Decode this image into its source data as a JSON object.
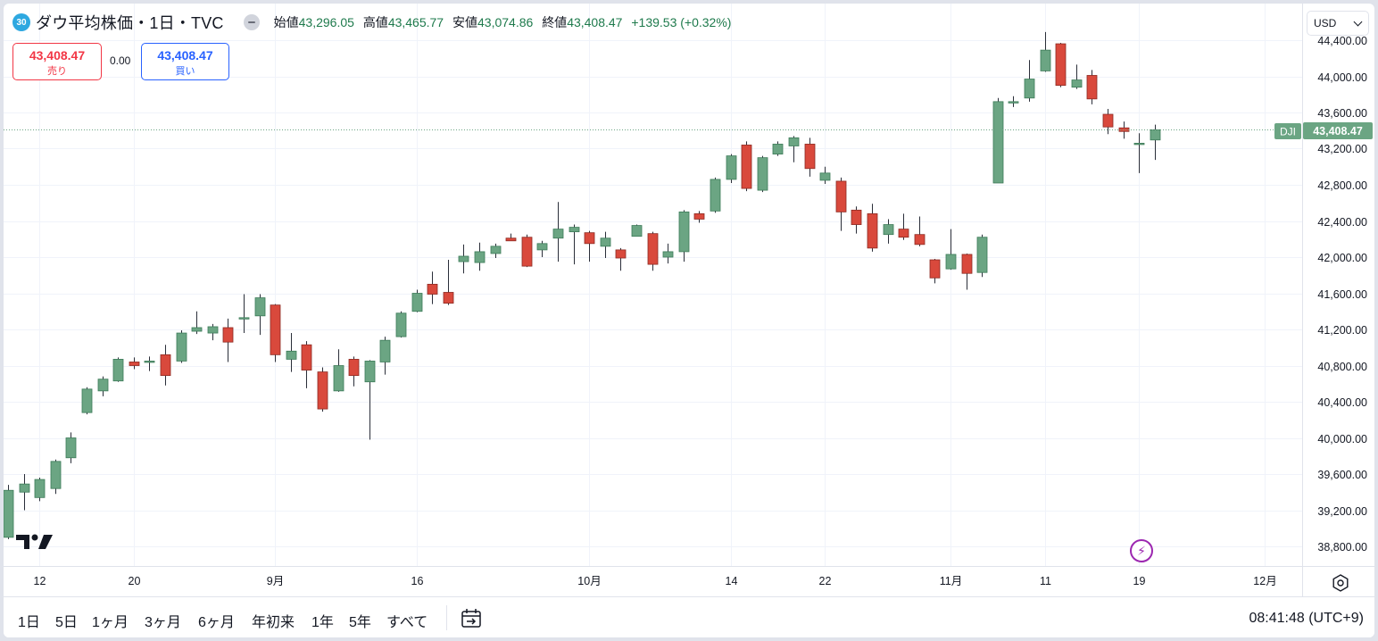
{
  "header": {
    "badge": "30",
    "title": "ダウ平均株価・1日・TVC",
    "ohlc": [
      {
        "label": "始値",
        "value": "43,296.05"
      },
      {
        "label": "高値",
        "value": "43,465.77"
      },
      {
        "label": "安値",
        "value": "43,074.86"
      },
      {
        "label": "終値",
        "value": "43,408.47"
      }
    ],
    "change": "+139.53 (+0.32%)"
  },
  "trade": {
    "sell_price": "43,408.47",
    "sell_label": "売り",
    "spread": "0.00",
    "buy_price": "43,408.47",
    "buy_label": "買い"
  },
  "currency": "USD",
  "price_marker": {
    "symbol": "DJI",
    "value": "43,408.47"
  },
  "colors": {
    "up": "#6ba583",
    "down": "#d9493c",
    "grid": "#f0f3fa",
    "marker": "#6ba583"
  },
  "bottom": {
    "ranges": [
      "1日",
      "5日",
      "1ヶ月",
      "3ヶ月",
      "6ヶ月",
      "年初来",
      "1年",
      "5年",
      "すべて"
    ],
    "clock": "08:41:48 (UTC+9)"
  },
  "icons": {
    "logo": "tradingview-logo-icon",
    "alert": "lightning-icon",
    "settings": "settings-icon",
    "goto_date": "date-range-icon"
  },
  "chart_data": {
    "type": "candlestick",
    "y_ticks": [
      {
        "value": 38800,
        "label": "38,800.00"
      },
      {
        "value": 39200,
        "label": "39,200.00"
      },
      {
        "value": 39600,
        "label": "39,600.00"
      },
      {
        "value": 40000,
        "label": "40,000.00"
      },
      {
        "value": 40400,
        "label": "40,400.00"
      },
      {
        "value": 40800,
        "label": "40,800.00"
      },
      {
        "value": 41200,
        "label": "41,200.00"
      },
      {
        "value": 41600,
        "label": "41,600.00"
      },
      {
        "value": 42000,
        "label": "42,000.00"
      },
      {
        "value": 42400,
        "label": "42,400.00"
      },
      {
        "value": 42800,
        "label": "42,800.00"
      },
      {
        "value": 43200,
        "label": "43,200.00"
      },
      {
        "value": 43600,
        "label": "43,600.00"
      },
      {
        "value": 44000,
        "label": "44,000.00"
      },
      {
        "value": 44400,
        "label": "44,400.00"
      }
    ],
    "x_ticks": [
      {
        "index": 2,
        "label": "12"
      },
      {
        "index": 8,
        "label": "20"
      },
      {
        "index": 17,
        "label": "9月"
      },
      {
        "index": 26,
        "label": "16"
      },
      {
        "index": 37,
        "label": "10月"
      },
      {
        "index": 46,
        "label": "14"
      },
      {
        "index": 52,
        "label": "22"
      },
      {
        "index": 60,
        "label": "11月"
      },
      {
        "index": 66,
        "label": "11"
      },
      {
        "index": 72,
        "label": "19"
      },
      {
        "index": 80,
        "label": "12月"
      }
    ],
    "last_price": 43408.47,
    "candles": [
      {
        "o": 38900,
        "h": 39480,
        "l": 38880,
        "c": 39420
      },
      {
        "o": 39400,
        "h": 39600,
        "l": 39200,
        "c": 39490
      },
      {
        "o": 39340,
        "h": 39560,
        "l": 39300,
        "c": 39540
      },
      {
        "o": 39440,
        "h": 39760,
        "l": 39380,
        "c": 39740
      },
      {
        "o": 39780,
        "h": 40060,
        "l": 39720,
        "c": 40000
      },
      {
        "o": 40280,
        "h": 40560,
        "l": 40260,
        "c": 40540
      },
      {
        "o": 40520,
        "h": 40680,
        "l": 40460,
        "c": 40650
      },
      {
        "o": 40630,
        "h": 40890,
        "l": 40620,
        "c": 40870
      },
      {
        "o": 40840,
        "h": 40890,
        "l": 40760,
        "c": 40800
      },
      {
        "o": 40840,
        "h": 40900,
        "l": 40740,
        "c": 40850
      },
      {
        "o": 40920,
        "h": 41030,
        "l": 40580,
        "c": 40690
      },
      {
        "o": 40850,
        "h": 41190,
        "l": 40830,
        "c": 41160
      },
      {
        "o": 41180,
        "h": 41400,
        "l": 41150,
        "c": 41220
      },
      {
        "o": 41160,
        "h": 41260,
        "l": 41080,
        "c": 41230
      },
      {
        "o": 41220,
        "h": 41320,
        "l": 40840,
        "c": 41060
      },
      {
        "o": 41330,
        "h": 41590,
        "l": 41160,
        "c": 41330
      },
      {
        "o": 41350,
        "h": 41590,
        "l": 41140,
        "c": 41550
      },
      {
        "o": 41470,
        "h": 41480,
        "l": 40840,
        "c": 40920
      },
      {
        "o": 40870,
        "h": 41160,
        "l": 40730,
        "c": 40960
      },
      {
        "o": 41030,
        "h": 41070,
        "l": 40550,
        "c": 40750
      },
      {
        "o": 40730,
        "h": 40780,
        "l": 40290,
        "c": 40320
      },
      {
        "o": 40520,
        "h": 40980,
        "l": 40510,
        "c": 40800
      },
      {
        "o": 40870,
        "h": 40900,
        "l": 40570,
        "c": 40690
      },
      {
        "o": 40620,
        "h": 40860,
        "l": 39980,
        "c": 40850
      },
      {
        "o": 40840,
        "h": 41120,
        "l": 40700,
        "c": 41080
      },
      {
        "o": 41120,
        "h": 41400,
        "l": 41110,
        "c": 41380
      },
      {
        "o": 41400,
        "h": 41640,
        "l": 41390,
        "c": 41600
      },
      {
        "o": 41700,
        "h": 41840,
        "l": 41480,
        "c": 41590
      },
      {
        "o": 41610,
        "h": 41970,
        "l": 41470,
        "c": 41490
      },
      {
        "o": 41950,
        "h": 42140,
        "l": 41820,
        "c": 42010
      },
      {
        "o": 41940,
        "h": 42160,
        "l": 41850,
        "c": 42060
      },
      {
        "o": 42040,
        "h": 42150,
        "l": 41990,
        "c": 42120
      },
      {
        "o": 42210,
        "h": 42260,
        "l": 42180,
        "c": 42180
      },
      {
        "o": 42220,
        "h": 42250,
        "l": 41890,
        "c": 41900
      },
      {
        "o": 42080,
        "h": 42180,
        "l": 42000,
        "c": 42150
      },
      {
        "o": 42210,
        "h": 42610,
        "l": 41950,
        "c": 42310
      },
      {
        "o": 42280,
        "h": 42360,
        "l": 41920,
        "c": 42330
      },
      {
        "o": 42270,
        "h": 42290,
        "l": 41950,
        "c": 42150
      },
      {
        "o": 42120,
        "h": 42280,
        "l": 41990,
        "c": 42210
      },
      {
        "o": 42080,
        "h": 42100,
        "l": 41850,
        "c": 41990
      },
      {
        "o": 42230,
        "h": 42360,
        "l": 42230,
        "c": 42350
      },
      {
        "o": 42260,
        "h": 42280,
        "l": 41850,
        "c": 41920
      },
      {
        "o": 42000,
        "h": 42150,
        "l": 41930,
        "c": 42060
      },
      {
        "o": 42060,
        "h": 42520,
        "l": 41950,
        "c": 42500
      },
      {
        "o": 42480,
        "h": 42510,
        "l": 42380,
        "c": 42420
      },
      {
        "o": 42510,
        "h": 42880,
        "l": 42490,
        "c": 42860
      },
      {
        "o": 42860,
        "h": 43140,
        "l": 42820,
        "c": 43120
      },
      {
        "o": 43240,
        "h": 43280,
        "l": 42730,
        "c": 42760
      },
      {
        "o": 42740,
        "h": 43120,
        "l": 42720,
        "c": 43100
      },
      {
        "o": 43140,
        "h": 43280,
        "l": 43120,
        "c": 43250
      },
      {
        "o": 43230,
        "h": 43340,
        "l": 43050,
        "c": 43320
      },
      {
        "o": 43250,
        "h": 43320,
        "l": 42890,
        "c": 42980
      },
      {
        "o": 42850,
        "h": 43000,
        "l": 42810,
        "c": 42930
      },
      {
        "o": 42840,
        "h": 42880,
        "l": 42290,
        "c": 42500
      },
      {
        "o": 42520,
        "h": 42560,
        "l": 42260,
        "c": 42360
      },
      {
        "o": 42480,
        "h": 42590,
        "l": 42060,
        "c": 42100
      },
      {
        "o": 42250,
        "h": 42420,
        "l": 42150,
        "c": 42360
      },
      {
        "o": 42310,
        "h": 42480,
        "l": 42190,
        "c": 42220
      },
      {
        "o": 42250,
        "h": 42450,
        "l": 42120,
        "c": 42140
      },
      {
        "o": 41970,
        "h": 41980,
        "l": 41710,
        "c": 41770
      },
      {
        "o": 41870,
        "h": 42310,
        "l": 41860,
        "c": 42030
      },
      {
        "o": 42030,
        "h": 42040,
        "l": 41640,
        "c": 41820
      },
      {
        "o": 41830,
        "h": 42250,
        "l": 41780,
        "c": 42220
      },
      {
        "o": 42820,
        "h": 43760,
        "l": 42820,
        "c": 43720
      },
      {
        "o": 43720,
        "h": 43780,
        "l": 43660,
        "c": 43720
      },
      {
        "o": 43760,
        "h": 44180,
        "l": 43720,
        "c": 43970
      },
      {
        "o": 44060,
        "h": 44490,
        "l": 44050,
        "c": 44290
      },
      {
        "o": 44360,
        "h": 44370,
        "l": 43880,
        "c": 43900
      },
      {
        "o": 43880,
        "h": 44130,
        "l": 43860,
        "c": 43960
      },
      {
        "o": 44010,
        "h": 44070,
        "l": 43690,
        "c": 43750
      },
      {
        "o": 43580,
        "h": 43640,
        "l": 43360,
        "c": 43440
      },
      {
        "o": 43430,
        "h": 43500,
        "l": 43310,
        "c": 43390
      },
      {
        "o": 43260,
        "h": 43370,
        "l": 42930,
        "c": 43260
      },
      {
        "o": 43296.05,
        "h": 43465.77,
        "l": 43074.86,
        "c": 43408.47
      }
    ]
  }
}
